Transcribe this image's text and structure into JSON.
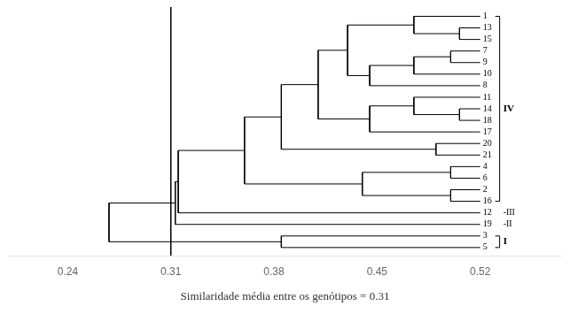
{
  "chart_data": {
    "type": "dendrogram",
    "title": "Similaridade média entre os genótipos = 0.31",
    "leaves": [
      "1",
      "13",
      "15",
      "7",
      "9",
      "10",
      "8",
      "11",
      "14",
      "18",
      "17",
      "20",
      "21",
      "4",
      "6",
      "2",
      "16",
      "12",
      "19",
      "3",
      "5"
    ],
    "leaf_x": 0.52,
    "tree": {
      "x": 0.268,
      "children": [
        {
          "x": 0.313,
          "children": [
            {
              "x": 0.315,
              "children": [
                {
                  "x": 0.36,
                  "children": [
                    {
                      "x": 0.385,
                      "children": [
                        {
                          "x": 0.41,
                          "children": [
                            {
                              "x": 0.43,
                              "children": [
                                {
                                  "x": 0.475,
                                  "children": [
                                    "1",
                                    {
                                      "x": 0.506,
                                      "children": [
                                        "13",
                                        "15"
                                      ]
                                    }
                                  ]
                                },
                                {
                                  "x": 0.445,
                                  "children": [
                                    {
                                      "x": 0.475,
                                      "children": [
                                        {
                                          "x": 0.5,
                                          "children": [
                                            "7",
                                            "9"
                                          ]
                                        },
                                        "10"
                                      ]
                                    },
                                    "8"
                                  ]
                                }
                              ]
                            },
                            {
                              "x": 0.445,
                              "children": [
                                {
                                  "x": 0.475,
                                  "children": [
                                    "11",
                                    {
                                      "x": 0.506,
                                      "children": [
                                        "14",
                                        "18"
                                      ]
                                    }
                                  ]
                                },
                                "17"
                              ]
                            }
                          ]
                        },
                        {
                          "x": 0.49,
                          "children": [
                            "20",
                            "21"
                          ]
                        }
                      ]
                    },
                    {
                      "x": 0.44,
                      "children": [
                        {
                          "x": 0.5,
                          "children": [
                            "4",
                            "6"
                          ]
                        },
                        {
                          "x": 0.5,
                          "children": [
                            "2",
                            "16"
                          ]
                        }
                      ]
                    }
                  ]
                },
                "12"
              ]
            },
            "19"
          ]
        },
        {
          "x": 0.385,
          "children": [
            "3",
            "5"
          ]
        }
      ]
    },
    "vline": 0.31,
    "groups": [
      {
        "label": "IV",
        "leaves": [
          "1",
          "13",
          "15",
          "7",
          "9",
          "10",
          "8",
          "11",
          "14",
          "18",
          "17",
          "20",
          "21",
          "4",
          "6",
          "2",
          "16"
        ]
      },
      {
        "label": "I",
        "leaves": [
          "3",
          "5"
        ]
      },
      {
        "label": "-III",
        "leaves": [
          "12"
        ]
      },
      {
        "label": "-II",
        "leaves": [
          "19"
        ]
      }
    ],
    "xlim": [
      0.2,
      0.575
    ],
    "xticks": [
      0.24,
      0.31,
      0.38,
      0.45,
      0.52
    ],
    "color": "#000000",
    "grid": false
  }
}
